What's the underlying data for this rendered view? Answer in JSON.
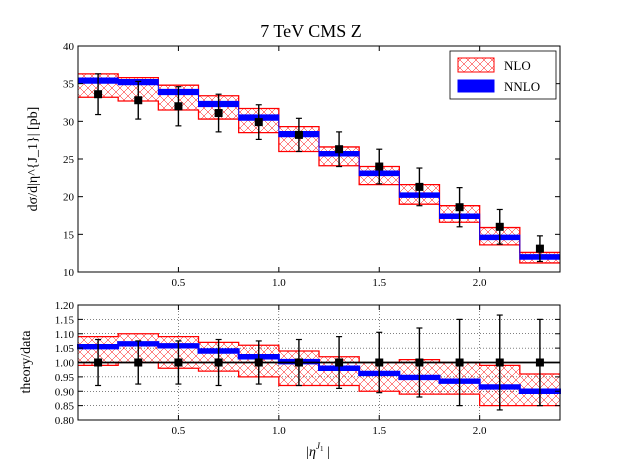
{
  "chart_data": [
    {
      "type": "step",
      "title": "7 TeV CMS Z",
      "xlabel": "|η^{J_1}|",
      "ylabel": "dσ/d|η^{J_1}| [pb]",
      "xlim": [
        0,
        2.4
      ],
      "ylim": [
        10,
        40
      ],
      "xticks": [
        "0.5",
        "1.0",
        "1.5",
        "2.0"
      ],
      "yticks": [
        "10",
        "15",
        "20",
        "25",
        "30",
        "35",
        "40"
      ],
      "bin_edges": [
        0,
        0.2,
        0.4,
        0.6,
        0.8,
        1.0,
        1.2,
        1.4,
        1.6,
        1.8,
        2.0,
        2.2,
        2.4
      ],
      "legend": [
        {
          "name": "NLO",
          "color": "#ff0000",
          "style": "hatched band"
        },
        {
          "name": "NNLO",
          "color": "#0000ff",
          "style": "filled band"
        }
      ],
      "series": [
        {
          "name": "NLO",
          "color": "#ff0000",
          "upper": [
            36.3,
            35.8,
            34.8,
            33.4,
            31.7,
            29.3,
            26.6,
            24.0,
            21.6,
            18.8,
            15.9,
            12.6
          ],
          "lower": [
            33.2,
            32.7,
            31.5,
            30.3,
            28.5,
            26.0,
            24.1,
            21.6,
            19.0,
            16.6,
            13.6,
            11.2
          ]
        },
        {
          "name": "NNLO",
          "color": "#0000ff",
          "central": [
            35.4,
            35.2,
            33.9,
            32.3,
            30.5,
            28.3,
            25.7,
            23.1,
            20.2,
            17.4,
            14.6,
            12.0
          ],
          "band_halfwidth": [
            0.35,
            0.35,
            0.35,
            0.35,
            0.35,
            0.35,
            0.3,
            0.3,
            0.3,
            0.3,
            0.3,
            0.3
          ]
        },
        {
          "name": "data",
          "color": "#000000",
          "x": [
            0.1,
            0.3,
            0.5,
            0.7,
            0.9,
            1.1,
            1.3,
            1.5,
            1.7,
            1.9,
            2.1,
            2.3
          ],
          "y": [
            33.6,
            32.8,
            32.0,
            31.1,
            29.9,
            28.2,
            26.3,
            24.0,
            21.3,
            18.6,
            16.0,
            13.1
          ],
          "err": [
            2.7,
            2.5,
            2.6,
            2.5,
            2.3,
            2.2,
            2.3,
            2.3,
            2.5,
            2.6,
            2.3,
            1.7
          ]
        }
      ]
    },
    {
      "type": "step",
      "xlabel": "|η^{J_1}|",
      "ylabel": "theory/data",
      "xlim": [
        0,
        2.4
      ],
      "ylim": [
        0.8,
        1.2
      ],
      "grid": true,
      "xticks": [
        "0.5",
        "1.0",
        "1.5",
        "2.0"
      ],
      "yticks": [
        "0.80",
        "0.85",
        "0.90",
        "0.95",
        "1.00",
        "1.05",
        "1.10",
        "1.15",
        "1.20"
      ],
      "bin_edges": [
        0,
        0.2,
        0.4,
        0.6,
        0.8,
        1.0,
        1.2,
        1.4,
        1.6,
        1.8,
        2.0,
        2.2,
        2.4
      ],
      "series": [
        {
          "name": "NLO",
          "color": "#ff0000",
          "upper": [
            1.09,
            1.1,
            1.09,
            1.07,
            1.06,
            1.04,
            1.02,
            1.0,
            1.01,
            1.0,
            0.99,
            0.96
          ],
          "lower": [
            0.99,
            1.0,
            0.98,
            0.97,
            0.95,
            0.92,
            0.92,
            0.9,
            0.89,
            0.89,
            0.85,
            0.85
          ]
        },
        {
          "name": "NNLO",
          "color": "#0000ff",
          "central": [
            1.055,
            1.065,
            1.058,
            1.04,
            1.02,
            1.003,
            0.98,
            0.962,
            0.948,
            0.935,
            0.915,
            0.9
          ],
          "band_halfwidth": [
            0.006,
            0.006,
            0.006,
            0.006,
            0.006,
            0.006,
            0.006,
            0.006,
            0.006,
            0.006,
            0.006,
            0.006
          ]
        },
        {
          "name": "data",
          "color": "#000000",
          "x": [
            0.1,
            0.3,
            0.5,
            0.7,
            0.9,
            1.1,
            1.3,
            1.5,
            1.7,
            1.9,
            2.1,
            2.3
          ],
          "y": [
            1.0,
            1.0,
            1.0,
            1.0,
            1.0,
            1.0,
            1.0,
            1.0,
            1.0,
            1.0,
            1.0,
            1.0
          ],
          "err": [
            0.08,
            0.075,
            0.075,
            0.08,
            0.075,
            0.08,
            0.09,
            0.105,
            0.12,
            0.15,
            0.165,
            0.15
          ]
        }
      ]
    }
  ]
}
